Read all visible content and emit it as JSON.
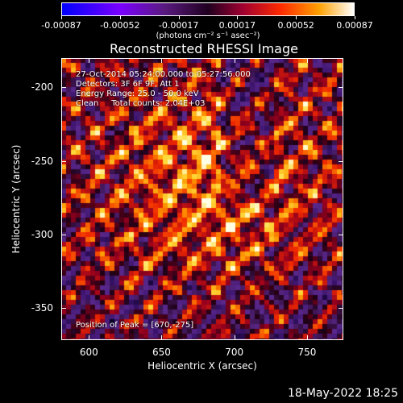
{
  "colorbar": {
    "tick_labels": [
      "-0.00087",
      "-0.00052",
      "-0.00017",
      "0.00017",
      "0.00052",
      "0.00087"
    ],
    "units": "(photons cm⁻² s⁻¹ asec⁻²)"
  },
  "title": "Reconstructed RHESSI Image",
  "info": {
    "time": "27-Oct-2014 05:24:00.000 to 05:27:56.000",
    "detectors": "Detectors: 3F 6F 9F, Att 1",
    "energy": "Energy Range: 25.0 - 50.0 keV",
    "clean": "Clean     Total counts: 2.04E+03",
    "peak": "Position of Peak = [670,-275]"
  },
  "x_axis": {
    "label": "Heliocentric X (arcsec)",
    "tick_labels": [
      "600",
      "650",
      "700",
      "750"
    ],
    "tick_values": [
      600,
      650,
      700,
      750
    ],
    "range": [
      581,
      775
    ]
  },
  "y_axis": {
    "label": "Heliocentric Y (arcsec)",
    "tick_labels": [
      "-200",
      "-250",
      "-300",
      "-350"
    ],
    "tick_values": [
      -200,
      -250,
      -300,
      -350
    ],
    "range": [
      -372,
      -180
    ]
  },
  "footer": {
    "date": "18-May-2022 18:25"
  }
}
